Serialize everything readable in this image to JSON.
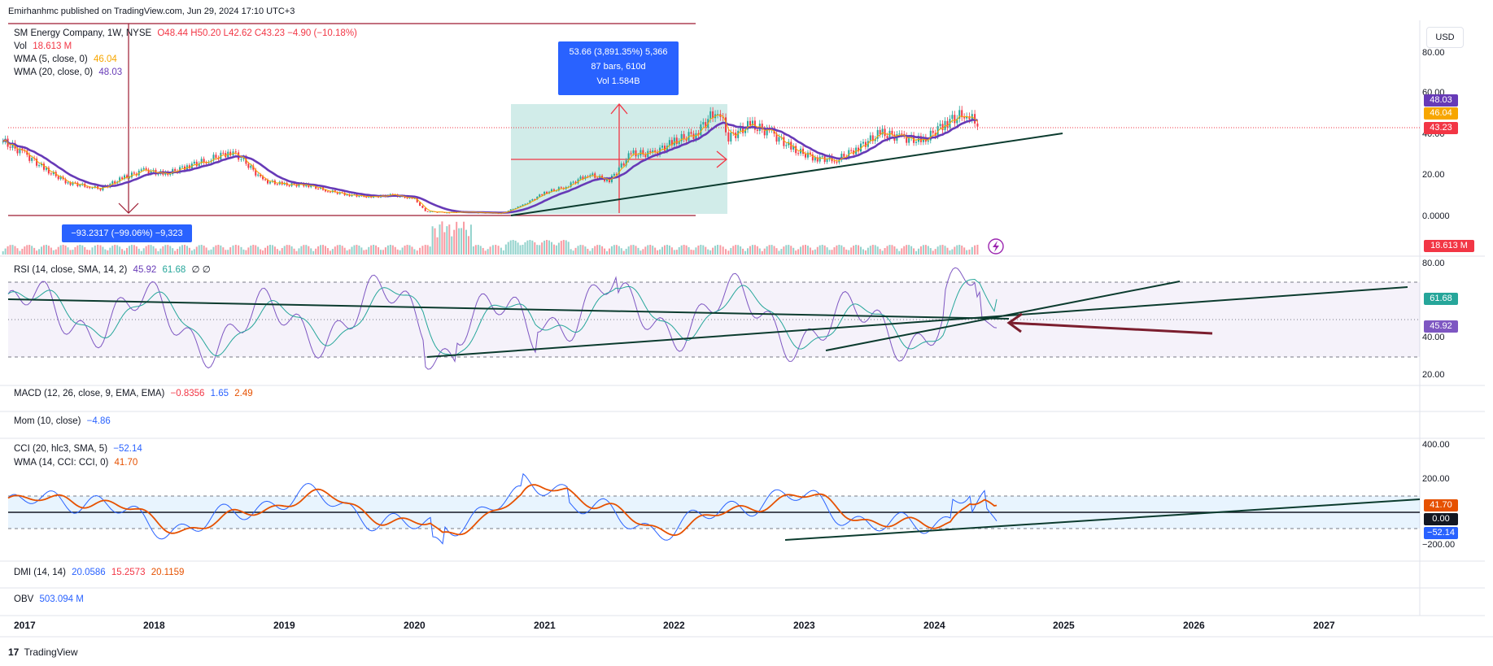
{
  "header": {
    "publisher_line": "Emirhanhmc published on TradingView.com, Jun 29, 2024 17:10 UTC+3",
    "currency": "USD"
  },
  "legend": {
    "symbol": "SM Energy Company, 1W, NYSE",
    "ohlc": "O48.44 H50.20 L42.62 C43.23 −4.90 (−10.18%)",
    "vol_label": "Vol",
    "vol_value": "18.613 M",
    "wma5_label": "WMA (5, close, 0)",
    "wma5_value": "46.04",
    "wma20_label": "WMA (20, close, 0)",
    "wma20_value": "48.03",
    "rsi_label": "RSI (14, close, SMA, 14, 2)",
    "rsi_value": "45.92",
    "rsi_ma_value": "61.68",
    "rsi_extra": "∅ ∅",
    "macd_label": "MACD (12, 26, close, 9, EMA, EMA)",
    "macd_v1": "−0.8356",
    "macd_v2": "1.65",
    "macd_v3": "2.49",
    "mom_label": "Mom (10, close)",
    "mom_value": "−4.86",
    "cci_label": "CCI (20, hlc3, SMA, 5)",
    "cci_value": "−52.14",
    "cci_wma_label": "WMA (14, CCI: CCI, 0)",
    "cci_wma_value": "41.70",
    "dmi_label": "DMI (14, 14)",
    "dmi_v1": "20.0586",
    "dmi_v2": "15.2573",
    "dmi_v3": "20.1159",
    "obv_label": "OBV",
    "obv_value": "503.094 M"
  },
  "annotations": {
    "rise_line1": "53.66 (3,891.35%) 5,366",
    "rise_line2": "87 bars, 610d",
    "rise_line3": "Vol 1.584B",
    "drop_text": "−93.2317 (−99.06%) −9,323"
  },
  "price_tags": {
    "wma20": "48.03",
    "wma5": "46.04",
    "close": "43.23",
    "vol": "18.613 M",
    "rsi_ma": "61.68",
    "rsi": "45.92",
    "cci_wma": "41.70",
    "zero": "0.00",
    "cci": "−52.14"
  },
  "colors": {
    "up": "#26a69a",
    "down": "#f23645",
    "wma5": "#f7a600",
    "wma20": "#673ab7",
    "rsi": "#7e57c2",
    "rsi_ma": "#26a69a",
    "cci": "#2962ff",
    "cci_wma": "#e65100",
    "trend": "#0b3b2e",
    "box_fill": "#b2dfdb"
  },
  "footer": {
    "brand": "TradingView",
    "logo": "17"
  },
  "chart_data": [
    {
      "type": "line",
      "name": "price-pane",
      "x": [
        "2017",
        "2018",
        "2019",
        "2020",
        "2021",
        "2022",
        "2023",
        "2024",
        "2025",
        "2026",
        "2027"
      ],
      "y_ticks": [
        "80.00",
        "60.00",
        "40.00",
        "20.00",
        "0.0000"
      ],
      "ylim": [
        0,
        80
      ],
      "close_series": [
        [
          "2016-12",
          36
        ],
        [
          "2017-02",
          30
        ],
        [
          "2017-04",
          22
        ],
        [
          "2017-06",
          16
        ],
        [
          "2017-08",
          14
        ],
        [
          "2017-09",
          13
        ],
        [
          "2017-11",
          18
        ],
        [
          "2018-01",
          22
        ],
        [
          "2018-03",
          20
        ],
        [
          "2018-05",
          24
        ],
        [
          "2018-07",
          27
        ],
        [
          "2018-09",
          31
        ],
        [
          "2018-10",
          28
        ],
        [
          "2018-12",
          17
        ],
        [
          "2019-02",
          15
        ],
        [
          "2019-04",
          15
        ],
        [
          "2019-06",
          12
        ],
        [
          "2019-08",
          10
        ],
        [
          "2019-10",
          9
        ],
        [
          "2019-12",
          10
        ],
        [
          "2020-02",
          8
        ],
        [
          "2020-03",
          2
        ],
        [
          "2020-05",
          1.5
        ],
        [
          "2020-07",
          1.7
        ],
        [
          "2020-09",
          1.2
        ],
        [
          "2020-10",
          1.1
        ],
        [
          "2020-12",
          5
        ],
        [
          "2021-02",
          11
        ],
        [
          "2021-04",
          14
        ],
        [
          "2021-06",
          20
        ],
        [
          "2021-08",
          17
        ],
        [
          "2021-10",
          30
        ],
        [
          "2021-12",
          30
        ],
        [
          "2022-02",
          36
        ],
        [
          "2022-04",
          40
        ],
        [
          "2022-06",
          52
        ],
        [
          "2022-07",
          38
        ],
        [
          "2022-09",
          44
        ],
        [
          "2022-11",
          40
        ],
        [
          "2023-01",
          32
        ],
        [
          "2023-03",
          28
        ],
        [
          "2023-05",
          27
        ],
        [
          "2023-07",
          33
        ],
        [
          "2023-09",
          40
        ],
        [
          "2023-11",
          38
        ],
        [
          "2024-01",
          36
        ],
        [
          "2024-03",
          45
        ],
        [
          "2024-05",
          50
        ],
        [
          "2024-06",
          43.23
        ]
      ],
      "wma5_last": 46.04,
      "wma20_last": 48.03,
      "last_close": 43.23
    },
    {
      "type": "line",
      "name": "rsi-pane",
      "y_ticks": [
        "80.00",
        "40.00",
        "20.00"
      ],
      "ylim": [
        20,
        80
      ],
      "levels": [
        70,
        50,
        30
      ],
      "rsi_last": 45.92,
      "rsi_ma_last": 61.68
    },
    {
      "type": "line",
      "name": "cci-pane",
      "y_ticks": [
        "400.00",
        "200.00",
        "−200.00"
      ],
      "ylim": [
        -300,
        400
      ],
      "levels": [
        100,
        0,
        -100
      ],
      "cci_last": -52.14,
      "cci_wma_last": 41.7
    }
  ]
}
